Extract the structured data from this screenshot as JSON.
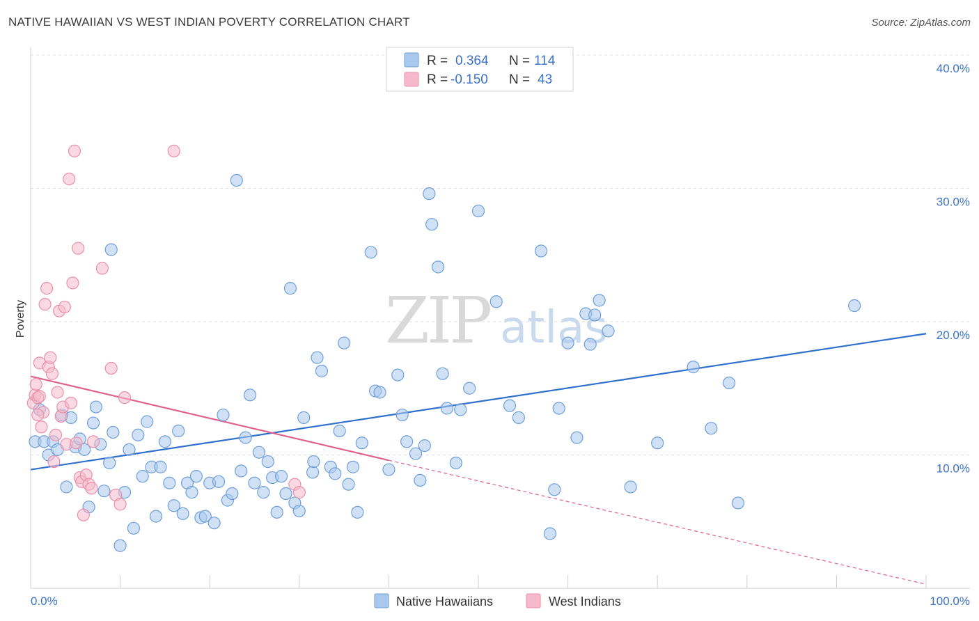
{
  "header": {
    "title": "NATIVE HAWAIIAN VS WEST INDIAN POVERTY CORRELATION CHART",
    "source": "Source: ZipAtlas.com"
  },
  "legend": {
    "rows": [
      {
        "r_label": "R =",
        "r_value": "0.364",
        "n_label": "N =",
        "n_value": "114"
      },
      {
        "r_label": "R =",
        "r_value": "-0.150",
        "n_label": "N =",
        "n_value": "43"
      }
    ]
  },
  "bottom_legend": {
    "items": [
      {
        "label": "Native Hawaiians"
      },
      {
        "label": "West Indians"
      }
    ]
  },
  "watermark": {
    "zip": "ZIP",
    "atlas": "atlas"
  },
  "colors": {
    "blue_fill": "#a9c8ee",
    "blue_stroke": "#6f9fd8",
    "blue_line": "#2f6fce",
    "pink_fill": "#f6b9cb",
    "pink_stroke": "#e890ab",
    "pink_line": "#e0608e",
    "grid": "#dcdcdc",
    "axis_text": "#3b73c9"
  },
  "chart_data": {
    "type": "scatter",
    "title": "NATIVE HAWAIIAN VS WEST INDIAN POVERTY CORRELATION CHART",
    "xlabel": "",
    "ylabel": "Poverty",
    "xlim": [
      0,
      100
    ],
    "ylim": [
      0,
      40
    ],
    "x_tick_labels": [
      "0.0%",
      "100.0%"
    ],
    "y_ticks": [
      10,
      20,
      30,
      40
    ],
    "y_tick_labels": [
      "10.0%",
      "20.0%",
      "30.0%",
      "40.0%"
    ],
    "grid": true,
    "series": [
      {
        "name": "Native Hawaiians",
        "color": "#a9c8ee",
        "trend": {
          "x": [
            0,
            100
          ],
          "y": [
            8.9,
            19.1
          ],
          "style": "solid"
        },
        "points": [
          [
            0.5,
            11.0
          ],
          [
            1.0,
            13.4
          ],
          [
            1.5,
            11.0
          ],
          [
            2.0,
            10.0
          ],
          [
            2.5,
            11.0
          ],
          [
            3.0,
            10.4
          ],
          [
            3.5,
            13.0
          ],
          [
            4.0,
            7.6
          ],
          [
            4.5,
            12.8
          ],
          [
            5.0,
            10.6
          ],
          [
            5.5,
            11.2
          ],
          [
            6.0,
            10.4
          ],
          [
            6.5,
            6.1
          ],
          [
            7.0,
            12.4
          ],
          [
            7.3,
            13.6
          ],
          [
            7.8,
            10.8
          ],
          [
            8.2,
            7.3
          ],
          [
            8.8,
            9.4
          ],
          [
            9.2,
            11.7
          ],
          [
            9.0,
            25.4
          ],
          [
            10.0,
            3.2
          ],
          [
            10.5,
            7.2
          ],
          [
            11.0,
            10.4
          ],
          [
            11.5,
            4.5
          ],
          [
            12.0,
            11.5
          ],
          [
            12.5,
            8.4
          ],
          [
            13.0,
            12.5
          ],
          [
            13.5,
            9.1
          ],
          [
            14.0,
            5.4
          ],
          [
            14.5,
            9.1
          ],
          [
            15.0,
            11.0
          ],
          [
            15.5,
            7.9
          ],
          [
            16.0,
            6.2
          ],
          [
            16.5,
            11.8
          ],
          [
            17.0,
            5.6
          ],
          [
            17.5,
            7.9
          ],
          [
            18.0,
            7.2
          ],
          [
            18.5,
            8.4
          ],
          [
            19.0,
            5.3
          ],
          [
            19.5,
            5.4
          ],
          [
            20.0,
            7.9
          ],
          [
            20.5,
            4.9
          ],
          [
            21.0,
            8.0
          ],
          [
            21.5,
            13.0
          ],
          [
            22.0,
            6.6
          ],
          [
            22.5,
            7.1
          ],
          [
            23.0,
            30.6
          ],
          [
            23.5,
            8.8
          ],
          [
            24.0,
            11.3
          ],
          [
            24.5,
            14.5
          ],
          [
            25.0,
            7.9
          ],
          [
            25.5,
            10.2
          ],
          [
            26.0,
            7.2
          ],
          [
            26.5,
            9.5
          ],
          [
            27.0,
            8.3
          ],
          [
            27.5,
            5.7
          ],
          [
            28.0,
            8.4
          ],
          [
            28.5,
            7.1
          ],
          [
            29.0,
            22.5
          ],
          [
            29.5,
            6.4
          ],
          [
            30.0,
            5.8
          ],
          [
            30.5,
            12.8
          ],
          [
            31.5,
            8.7
          ],
          [
            31.6,
            9.5
          ],
          [
            32.0,
            17.3
          ],
          [
            32.5,
            16.3
          ],
          [
            33.5,
            9.1
          ],
          [
            34.0,
            8.6
          ],
          [
            34.5,
            11.8
          ],
          [
            35.0,
            18.4
          ],
          [
            35.5,
            7.8
          ],
          [
            36.0,
            9.1
          ],
          [
            36.5,
            5.7
          ],
          [
            37.0,
            10.9
          ],
          [
            38.0,
            25.2
          ],
          [
            38.5,
            14.8
          ],
          [
            39.0,
            14.7
          ],
          [
            40.0,
            8.9
          ],
          [
            41.0,
            16.0
          ],
          [
            41.5,
            13.0
          ],
          [
            42.0,
            11.0
          ],
          [
            43.0,
            10.1
          ],
          [
            43.5,
            8.1
          ],
          [
            44.0,
            10.7
          ],
          [
            44.5,
            29.6
          ],
          [
            44.8,
            27.3
          ],
          [
            45.5,
            24.1
          ],
          [
            46.0,
            16.1
          ],
          [
            46.5,
            13.5
          ],
          [
            47.5,
            9.4
          ],
          [
            48.0,
            13.4
          ],
          [
            49.0,
            15.0
          ],
          [
            50.0,
            28.3
          ],
          [
            52.0,
            21.5
          ],
          [
            53.5,
            13.7
          ],
          [
            54.5,
            12.8
          ],
          [
            57.0,
            25.3
          ],
          [
            58.0,
            4.1
          ],
          [
            58.5,
            7.4
          ],
          [
            59.0,
            13.5
          ],
          [
            60.0,
            18.4
          ],
          [
            61.0,
            11.3
          ],
          [
            62.0,
            20.6
          ],
          [
            62.5,
            18.3
          ],
          [
            63.0,
            20.5
          ],
          [
            63.5,
            21.6
          ],
          [
            64.5,
            19.3
          ],
          [
            67.0,
            7.6
          ],
          [
            70.0,
            10.9
          ],
          [
            74.0,
            16.6
          ],
          [
            76.0,
            12.0
          ],
          [
            78.0,
            15.4
          ],
          [
            79.0,
            6.4
          ],
          [
            92.0,
            21.2
          ]
        ]
      },
      {
        "name": "West Indians",
        "color": "#f6b9cb",
        "trend": {
          "x": [
            0,
            40.0
          ],
          "y": [
            15.9,
            9.6
          ],
          "style": "solid",
          "extension": {
            "x": [
              40.0,
              100
            ],
            "y": [
              9.6,
              0.3
            ],
            "style": "dashed"
          }
        },
        "points": [
          [
            0.3,
            13.9
          ],
          [
            0.5,
            14.5
          ],
          [
            0.6,
            15.3
          ],
          [
            0.8,
            14.3
          ],
          [
            1.0,
            16.9
          ],
          [
            1.2,
            12.1
          ],
          [
            1.4,
            13.2
          ],
          [
            1.6,
            21.3
          ],
          [
            1.8,
            22.5
          ],
          [
            2.0,
            16.6
          ],
          [
            2.2,
            17.3
          ],
          [
            2.4,
            16.1
          ],
          [
            2.6,
            9.5
          ],
          [
            2.8,
            11.5
          ],
          [
            3.0,
            14.7
          ],
          [
            3.2,
            20.8
          ],
          [
            3.4,
            12.9
          ],
          [
            3.6,
            13.6
          ],
          [
            3.8,
            21.1
          ],
          [
            4.0,
            10.8
          ],
          [
            4.3,
            30.7
          ],
          [
            4.5,
            13.9
          ],
          [
            4.7,
            22.9
          ],
          [
            4.9,
            32.8
          ],
          [
            5.1,
            10.9
          ],
          [
            5.3,
            25.5
          ],
          [
            5.5,
            8.3
          ],
          [
            5.7,
            8.0
          ],
          [
            5.9,
            5.5
          ],
          [
            6.2,
            8.5
          ],
          [
            6.5,
            7.8
          ],
          [
            6.8,
            7.5
          ],
          [
            7.0,
            11.0
          ],
          [
            8.0,
            24.0
          ],
          [
            9.0,
            16.5
          ],
          [
            9.5,
            7.0
          ],
          [
            10.0,
            6.3
          ],
          [
            10.5,
            14.3
          ],
          [
            16.0,
            32.8
          ],
          [
            29.5,
            7.8
          ],
          [
            30.0,
            7.2
          ],
          [
            1.0,
            14.4
          ],
          [
            0.8,
            13.0
          ]
        ]
      }
    ]
  }
}
